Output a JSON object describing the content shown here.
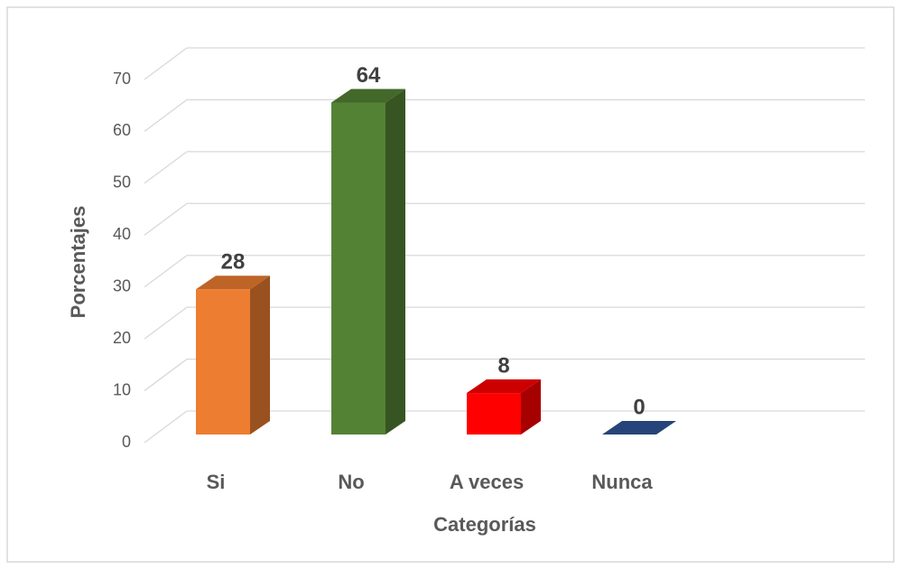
{
  "chart_data": {
    "type": "bar3d",
    "categories": [
      "Si",
      "No",
      "A veces",
      "Nunca"
    ],
    "values": [
      28,
      64,
      8,
      0
    ],
    "colors": [
      "#ED7D31",
      "#548235",
      "#FF0000",
      "#2F5597"
    ],
    "xlabel": "Categorías",
    "ylabel": "Porcentajes",
    "ylim": [
      0,
      70
    ],
    "yticks": [
      0,
      10,
      20,
      30,
      40,
      50,
      60,
      70
    ],
    "grid": true
  }
}
